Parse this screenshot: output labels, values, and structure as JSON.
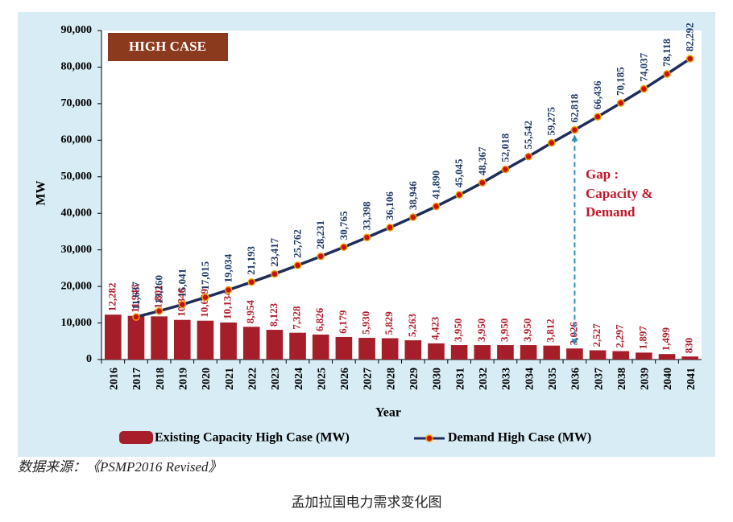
{
  "chart_data": {
    "type": "bar_line",
    "annotation": "HIGH CASE",
    "gap_label": [
      "Gap :",
      "Capacity &",
      "Demand"
    ],
    "ylabel": "MW",
    "xlabel": "Year",
    "categories": [
      "2016",
      "2017",
      "2018",
      "2019",
      "2020",
      "2021",
      "2022",
      "2023",
      "2024",
      "2025",
      "2026",
      "2027",
      "2028",
      "2029",
      "2030",
      "2031",
      "2032",
      "2033",
      "2034",
      "2035",
      "2036",
      "2037",
      "2038",
      "2039",
      "2040",
      "2041"
    ],
    "series": [
      {
        "name": "Existing Capacity High Case (MW)",
        "type": "bar",
        "color": "#a61e2a",
        "values": [
          12282,
          11946,
          11801,
          10846,
          10629,
          10134,
          8954,
          8123,
          7328,
          6826,
          6179,
          5930,
          5829,
          5263,
          4423,
          3950,
          3950,
          3950,
          3950,
          3812,
          3026,
          2527,
          2297,
          1897,
          1499,
          830
        ],
        "value_labels": [
          "12,282",
          "11,946",
          "11,801",
          "10,846",
          "10,629",
          "10,134",
          "8,954",
          "8,123",
          "7,328",
          "6,826",
          "6,179",
          "5,930",
          "5,829",
          "5,263",
          "4,423",
          "3,950",
          "3,950",
          "3,950",
          "3,950",
          "3,812",
          "3,026",
          "2,527",
          "2,297",
          "1,897",
          "1,499",
          "830"
        ]
      },
      {
        "name": "Demand High Case (MW)",
        "type": "line",
        "color": "#1f2d5a",
        "marker_color": "#c81010",
        "values": [
          null,
          11637,
          13260,
          15041,
          17015,
          19034,
          21193,
          23417,
          25762,
          28231,
          30765,
          33398,
          36106,
          38946,
          41890,
          45045,
          48367,
          52018,
          55542,
          59275,
          62818,
          66436,
          70185,
          74037,
          78118,
          82292
        ],
        "value_labels": [
          null,
          "11,637",
          "13,260",
          "15,041",
          "17,015",
          "19,034",
          "21,193",
          "23,417",
          "25,762",
          "28,231",
          "30,765",
          "33,398",
          "36,106",
          "38,946",
          "41,890",
          "45,045",
          "48,367",
          "52,018",
          "55,542",
          "59,275",
          "62,818",
          "66,436",
          "70,185",
          "74,037",
          "78,118",
          "82,292"
        ]
      }
    ],
    "ylim": [
      0,
      90000
    ],
    "yticks": [
      0,
      {
        "value": 10000,
        "label": "10,000"
      },
      {
        "value": 20000,
        "label": "20,000"
      },
      {
        "value": 30000,
        "label": "30,000"
      },
      {
        "value": 40000,
        "label": "40,000"
      },
      {
        "value": 50000,
        "label": "50,000"
      },
      {
        "value": 60000,
        "label": "60,000"
      },
      {
        "value": 70000,
        "label": "70,000"
      },
      {
        "value": 80000,
        "label": "80,000"
      },
      {
        "value": 90000,
        "label": "90,000"
      }
    ],
    "legend": "bottom"
  },
  "source": "数据来源：《PSMP2016 Revised》",
  "caption": "孟加拉国电力需求变化图"
}
